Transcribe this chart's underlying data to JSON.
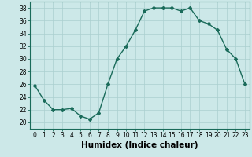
{
  "x": [
    0,
    1,
    2,
    3,
    4,
    5,
    6,
    7,
    8,
    9,
    10,
    11,
    12,
    13,
    14,
    15,
    16,
    17,
    18,
    19,
    20,
    21,
    22,
    23
  ],
  "y": [
    25.8,
    23.5,
    22.0,
    22.0,
    22.2,
    21.0,
    20.5,
    21.5,
    26.0,
    30.0,
    32.0,
    34.5,
    37.5,
    38.0,
    38.0,
    38.0,
    37.5,
    38.0,
    36.0,
    35.5,
    34.5,
    31.5,
    30.0,
    26.0
  ],
  "line_color": "#1a6b5a",
  "marker": "D",
  "marker_size": 2,
  "line_width": 1.0,
  "bg_color": "#cce8e8",
  "grid_color": "#aacfcf",
  "xlabel": "Humidex (Indice chaleur)",
  "xlim": [
    -0.5,
    23.5
  ],
  "ylim": [
    19,
    39
  ],
  "xticks": [
    0,
    1,
    2,
    3,
    4,
    5,
    6,
    7,
    8,
    9,
    10,
    11,
    12,
    13,
    14,
    15,
    16,
    17,
    18,
    19,
    20,
    21,
    22,
    23
  ],
  "yticks": [
    20,
    22,
    24,
    26,
    28,
    30,
    32,
    34,
    36,
    38
  ],
  "tick_fontsize": 5.5,
  "xlabel_fontsize": 7.5
}
